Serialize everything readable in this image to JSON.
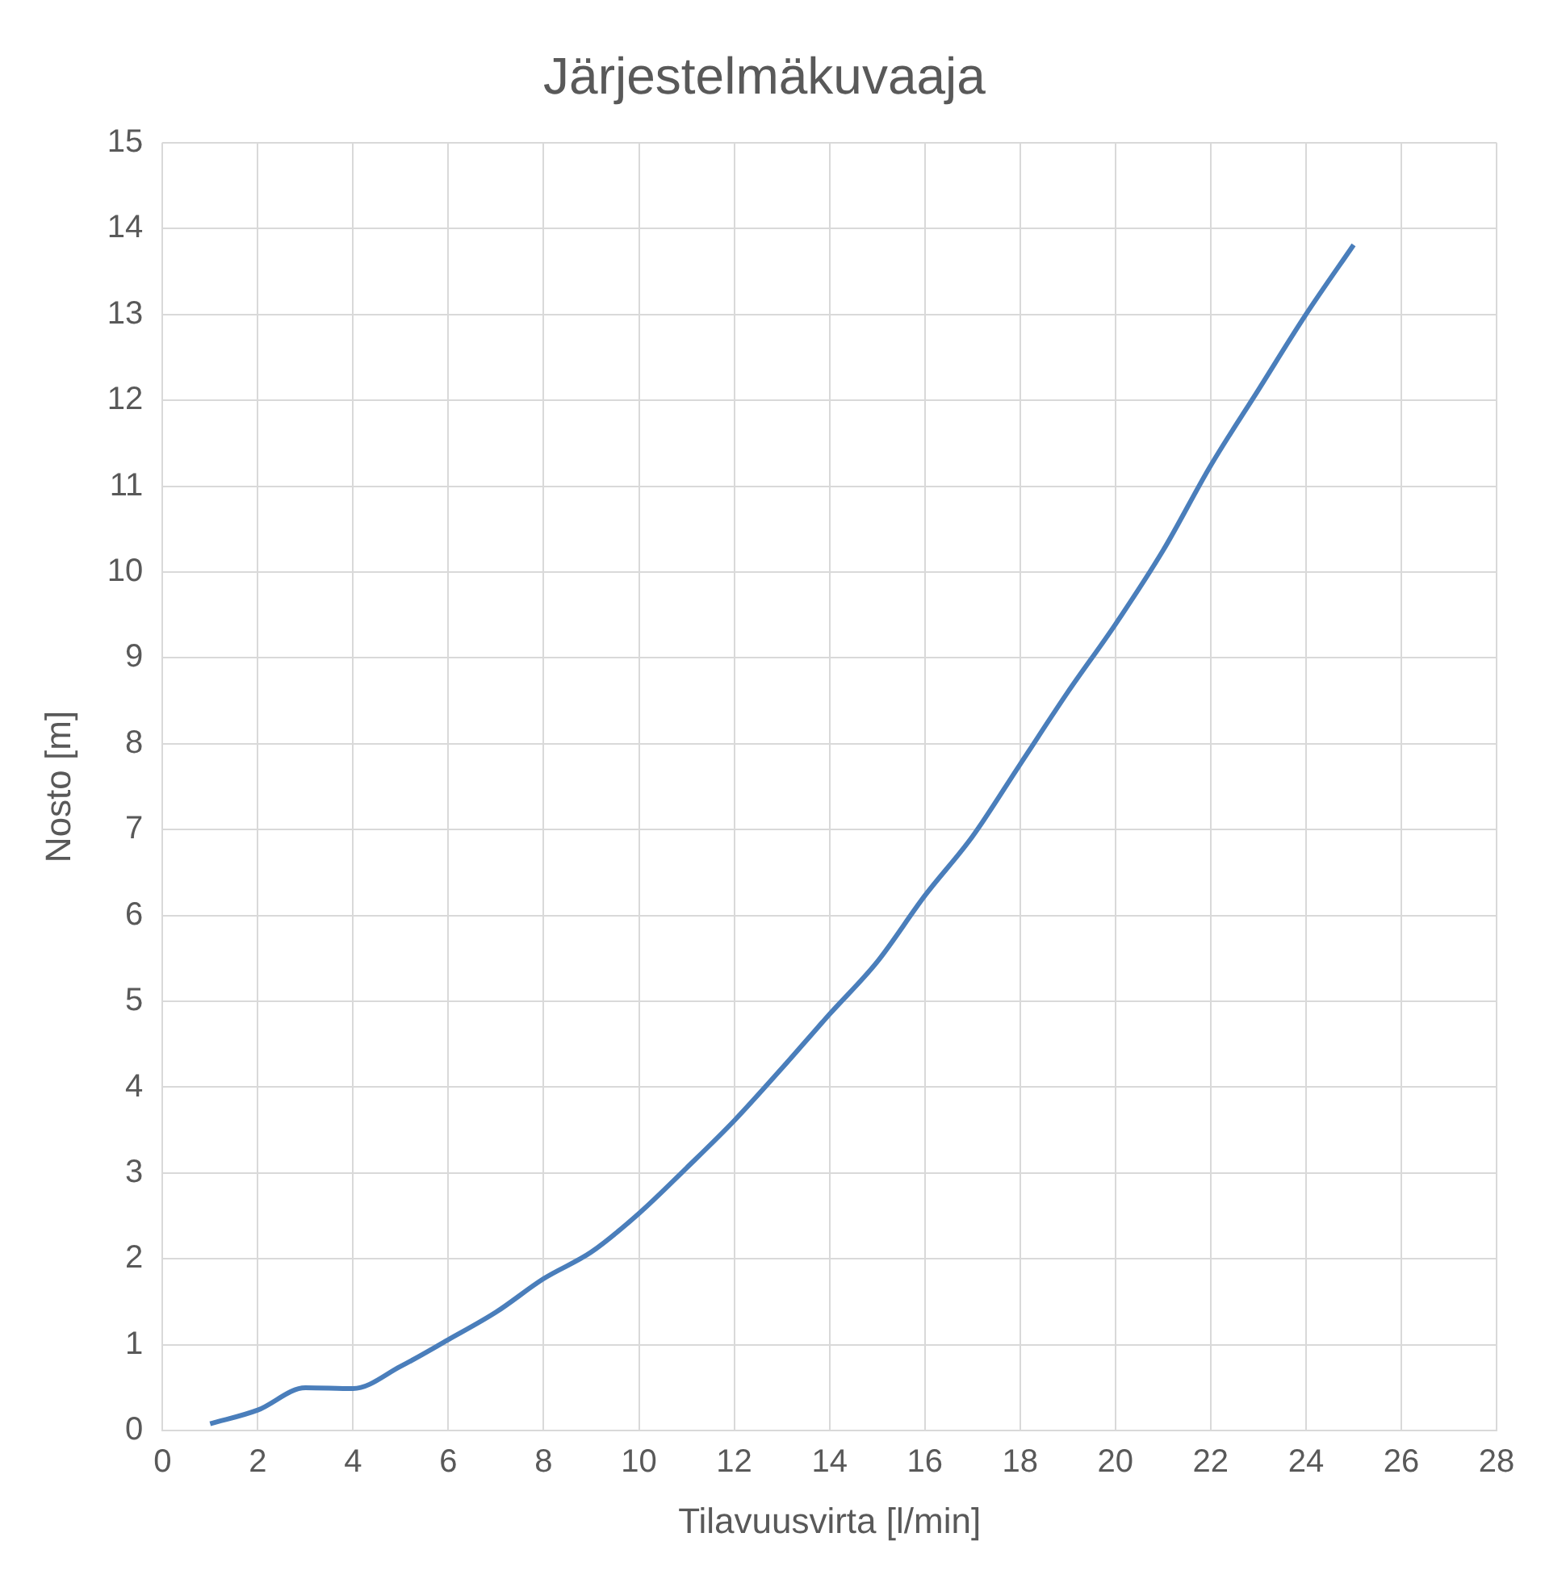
{
  "chart_data": {
    "type": "line",
    "title": "Järjestelmäkuvaaja",
    "xlabel": "Tilavuusvirta [l/min]",
    "ylabel": "Nosto [m]",
    "x": [
      1,
      2,
      3,
      4,
      5,
      6,
      7,
      8,
      9,
      10,
      11,
      12,
      13,
      14,
      15,
      16,
      17,
      18,
      19,
      20,
      21,
      22,
      23,
      24,
      25
    ],
    "series": [
      {
        "color": "#4a7ebb",
        "values": [
          0.08,
          0.24,
          0.5,
          0.49,
          0.75,
          1.06,
          1.38,
          1.77,
          2.08,
          2.53,
          3.06,
          3.61,
          4.22,
          4.85,
          5.46,
          6.23,
          6.92,
          7.76,
          8.6,
          9.39,
          10.25,
          11.24,
          12.12,
          13.0,
          13.81
        ]
      }
    ],
    "xlim": [
      0,
      28
    ],
    "xticks": [
      0,
      2,
      4,
      6,
      8,
      10,
      12,
      14,
      16,
      18,
      20,
      22,
      24,
      26,
      28
    ],
    "ylim": [
      0,
      15
    ],
    "yticks": [
      0,
      1,
      2,
      3,
      4,
      5,
      6,
      7,
      8,
      9,
      10,
      11,
      12,
      13,
      14,
      15
    ],
    "grid": true,
    "legend": false,
    "marker": "none",
    "line_style": "solid"
  }
}
